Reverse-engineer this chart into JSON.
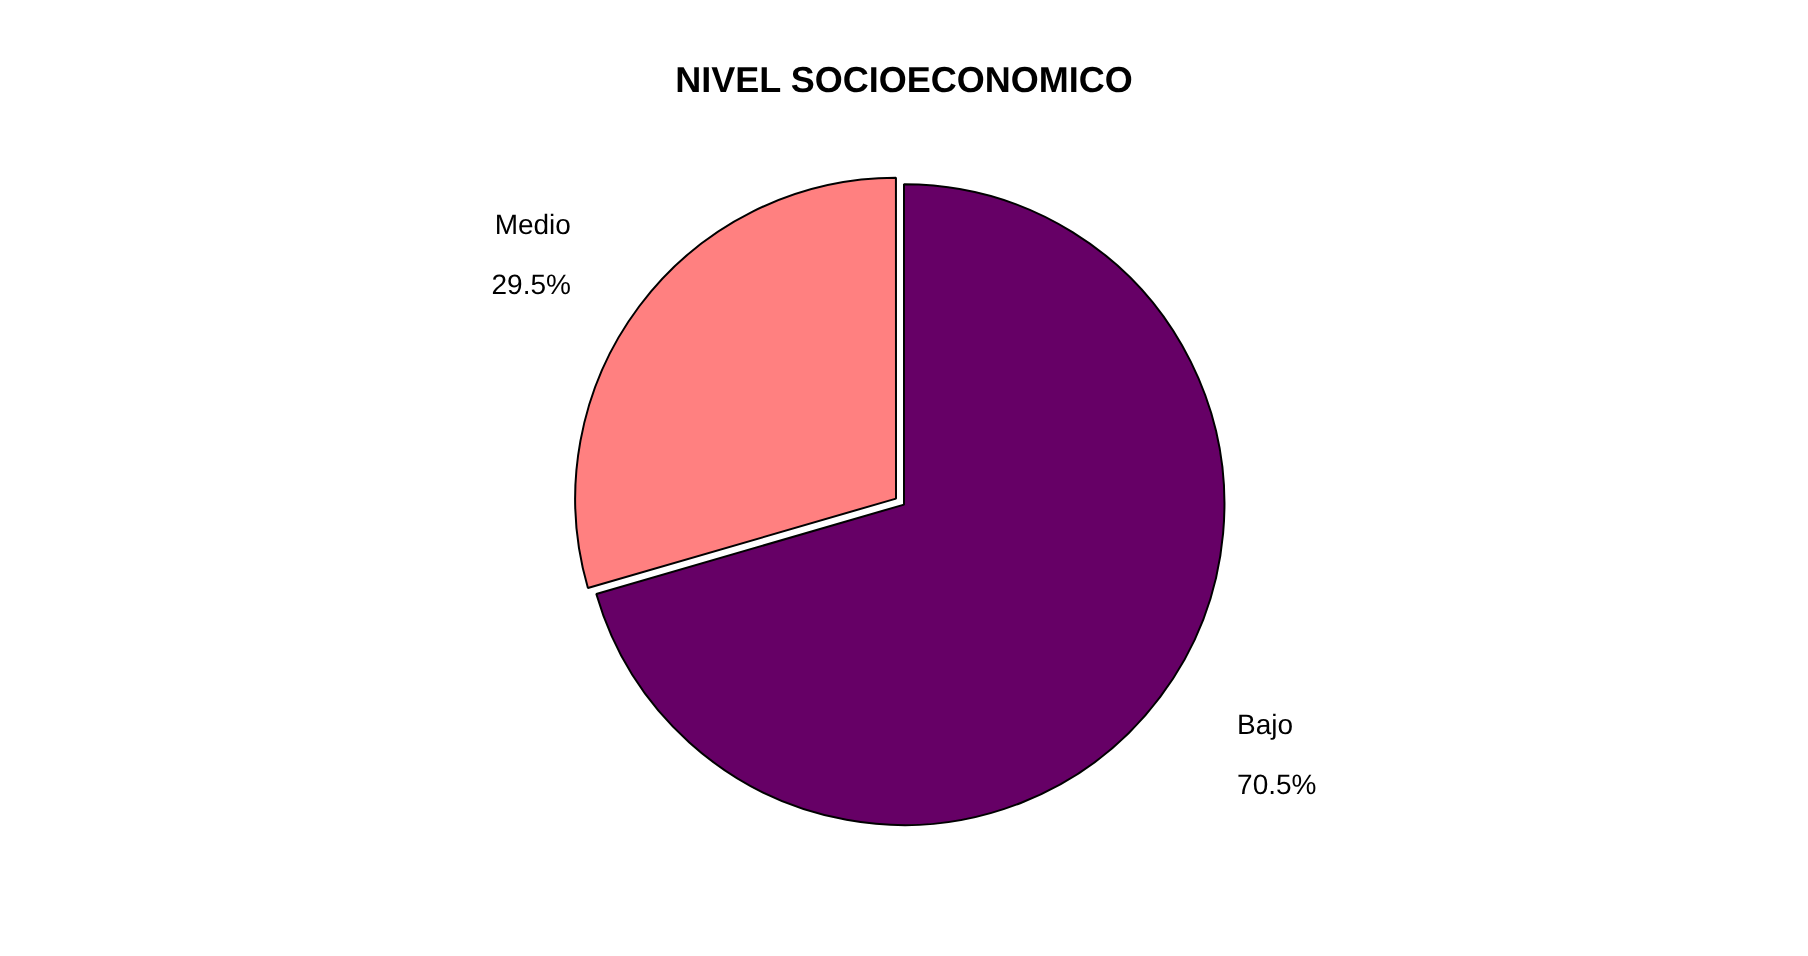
{
  "chart_data": {
    "type": "pie",
    "title": "NIVEL SOCIOECONOMICO",
    "categories": [
      "Bajo",
      "Medio"
    ],
    "values": [
      70.5,
      29.5
    ],
    "colors": [
      "#660066",
      "#ff8080"
    ],
    "value_labels": [
      "70.5%",
      "29.5%"
    ],
    "legend": false
  }
}
